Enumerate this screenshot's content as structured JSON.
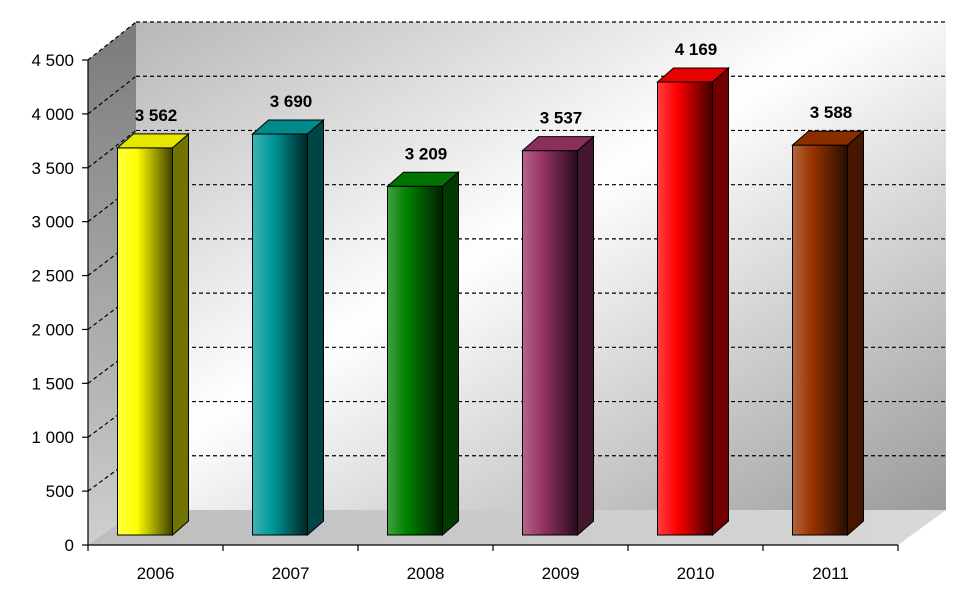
{
  "chart_data": {
    "type": "bar",
    "categories": [
      "2006",
      "2007",
      "2008",
      "2009",
      "2010",
      "2011"
    ],
    "values": [
      3562,
      3690,
      3209,
      3537,
      4169,
      3588
    ],
    "value_labels": [
      "3 562",
      "3 690",
      "3 209",
      "3 537",
      "4 169",
      "3 588"
    ],
    "ylim": [
      0,
      4500
    ],
    "yticks": [
      0,
      500,
      1000,
      1500,
      2000,
      2500,
      3000,
      3500,
      4000,
      4500
    ],
    "ytick_labels": [
      "0",
      "500",
      "1 000",
      "1 500",
      "2 000",
      "2 500",
      "3 000",
      "3 500",
      "4 000",
      "4 500"
    ],
    "grid": "dashed horizontal",
    "style": "3d",
    "colors": [
      "#ffff00",
      "#009999",
      "#008000",
      "#993366",
      "#ff0000",
      "#993300"
    ],
    "title": "",
    "xlabel": "",
    "ylabel": ""
  }
}
